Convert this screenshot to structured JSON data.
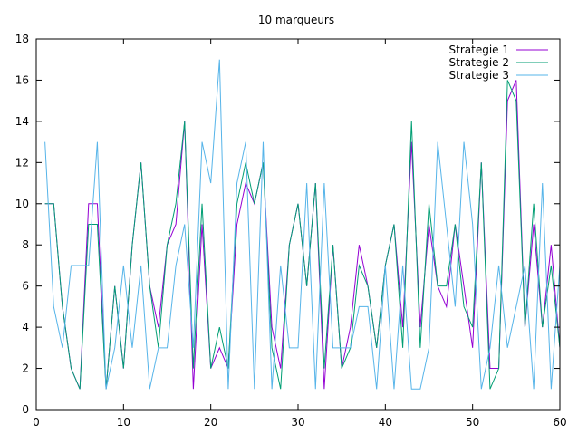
{
  "chart_data": {
    "type": "line",
    "title": "10 marqueurs",
    "xlabel": "",
    "ylabel": "",
    "xlim": [
      0,
      60
    ],
    "ylim": [
      0,
      18
    ],
    "xticks": [
      0,
      10,
      20,
      30,
      40,
      50,
      60
    ],
    "yticks": [
      0,
      2,
      4,
      6,
      8,
      10,
      12,
      14,
      16,
      18
    ],
    "grid": false,
    "legend_position": "top-right",
    "x": [
      1,
      2,
      3,
      4,
      5,
      6,
      7,
      8,
      9,
      10,
      11,
      12,
      13,
      14,
      15,
      16,
      17,
      18,
      19,
      20,
      21,
      22,
      23,
      24,
      25,
      26,
      27,
      28,
      29,
      30,
      31,
      32,
      33,
      34,
      35,
      36,
      37,
      38,
      39,
      40,
      41,
      42,
      43,
      44,
      45,
      46,
      47,
      48,
      49,
      50,
      51,
      52,
      53,
      54,
      55,
      56,
      57,
      58,
      59,
      60
    ],
    "series": [
      {
        "name": "Strategie 1",
        "color": "#9400d3",
        "values": [
          10,
          10,
          5,
          2,
          1,
          10,
          10,
          1,
          6,
          2,
          8,
          12,
          6,
          4,
          8,
          9,
          14,
          1,
          9,
          2,
          3,
          2,
          9,
          11,
          10,
          12,
          4,
          2,
          8,
          10,
          6,
          11,
          1,
          8,
          2,
          4,
          8,
          6,
          3,
          7,
          9,
          4,
          13,
          4,
          9,
          6,
          5,
          9,
          6,
          3,
          12,
          2,
          2,
          15,
          16,
          4,
          9,
          4,
          8,
          3
        ]
      },
      {
        "name": "Strategie 2",
        "color": "#009e73",
        "values": [
          10,
          10,
          5,
          2,
          1,
          9,
          9,
          1,
          6,
          2,
          8,
          12,
          6,
          3,
          8,
          10,
          14,
          2,
          10,
          2,
          4,
          2,
          10,
          12,
          10,
          12,
          3,
          1,
          8,
          10,
          6,
          11,
          2,
          8,
          2,
          3,
          7,
          6,
          3,
          7,
          9,
          3,
          14,
          3,
          10,
          6,
          6,
          9,
          5,
          4,
          12,
          1,
          2,
          16,
          15,
          4,
          10,
          4,
          7,
          3
        ]
      },
      {
        "name": "Strategie 3",
        "color": "#56b4e9",
        "values": [
          13,
          5,
          3,
          7,
          7,
          7,
          13,
          1,
          3,
          7,
          3,
          7,
          1,
          3,
          3,
          7,
          9,
          3,
          13,
          11,
          17,
          1,
          11,
          13,
          1,
          13,
          1,
          7,
          3,
          3,
          11,
          1,
          11,
          3,
          3,
          3,
          5,
          5,
          1,
          7,
          1,
          7,
          1,
          1,
          3,
          13,
          9,
          5,
          13,
          9,
          1,
          3,
          7,
          3,
          5,
          7,
          1,
          11,
          1,
          7
        ]
      }
    ]
  }
}
